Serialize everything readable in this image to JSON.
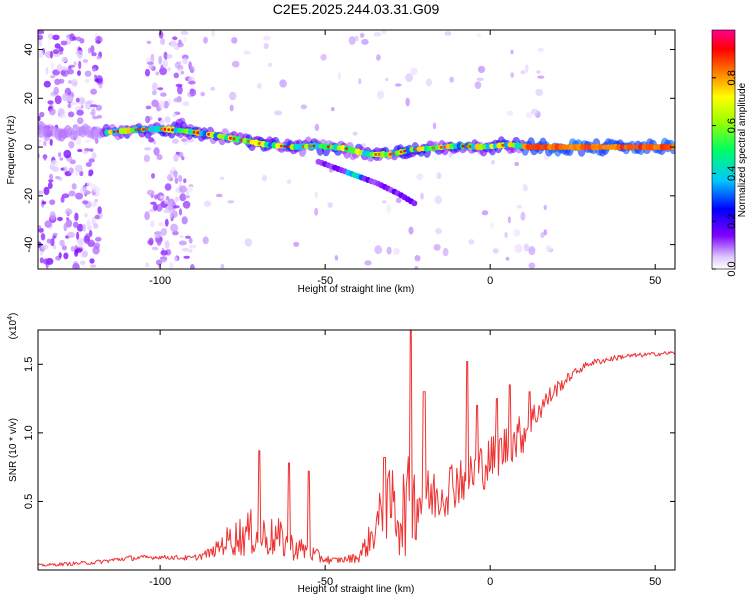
{
  "title": "C2E5.2025.244.03.31.G09",
  "chart_data": [
    {
      "type": "heatmap",
      "name": "spectrogram",
      "xlabel": "Height of straight line (km)",
      "ylabel": "Frequency (Hz)",
      "xlim": [
        -137,
        56
      ],
      "ylim": [
        -50,
        48
      ],
      "xticks": [
        -100,
        -50,
        0,
        50
      ],
      "xtick_labels": [
        "-100",
        "-50",
        "0",
        "50"
      ],
      "yticks": [
        40,
        20,
        0,
        -20,
        -40
      ],
      "ytick_labels": [
        "40",
        "20",
        "0",
        "-20",
        "-40"
      ],
      "ridge": {
        "description": "strongest spectral component",
        "x": [
          -116,
          -108,
          -100,
          -92,
          -84,
          -76,
          -68,
          -60,
          -52,
          -44,
          -37,
          -30,
          -24,
          -18,
          -10,
          -2,
          6,
          12,
          20,
          30,
          40,
          50,
          56
        ],
        "y": [
          6,
          7,
          7.5,
          6.5,
          5,
          3,
          1,
          0,
          0.5,
          -0.5,
          -3,
          -3,
          -1,
          -0.5,
          0.5,
          0,
          1,
          0,
          0,
          0,
          0,
          0,
          0
        ]
      },
      "branch": {
        "description": "secondary descending component",
        "x": [
          -52,
          -46,
          -40,
          -34,
          -28,
          -23
        ],
        "y": [
          -6,
          -9,
          -12,
          -15,
          -19,
          -23
        ]
      },
      "colorbar": {
        "label": "Normalized spectral amplitude",
        "min": 0,
        "max": 1,
        "ticks": [
          0.0,
          0.2,
          0.4,
          0.6,
          0.8
        ],
        "tick_labels": [
          "0.0",
          "0.2",
          "0.4",
          "0.6",
          "0.8"
        ],
        "colors": [
          "#ffffff",
          "#cc99ff",
          "#6600cc",
          "#0000ff",
          "#00ccff",
          "#00ff66",
          "#ffff00",
          "#ff6600",
          "#ff0000",
          "#ff0080"
        ]
      }
    },
    {
      "type": "line",
      "name": "snr",
      "xlabel": "Height of straight line (km)",
      "ylabel": "SNR (10 * v/v)",
      "scale_note": "(x10",
      "scale_exponent": "4",
      "xlim": [
        -137,
        56
      ],
      "ylim": [
        0,
        1.75
      ],
      "xticks": [
        -100,
        -50,
        0,
        50
      ],
      "xtick_labels": [
        "-100",
        "-50",
        "0",
        "50"
      ],
      "yticks": [
        0.5,
        1.0,
        1.5
      ],
      "ytick_labels": [
        "0.5",
        "1.0",
        "1.5"
      ],
      "color": "#ee3333",
      "envelope": {
        "x": [
          -137,
          -120,
          -110,
          -100,
          -90,
          -84,
          -80,
          -76,
          -72,
          -68,
          -64,
          -60,
          -56,
          -52,
          -48,
          -44,
          -40,
          -36,
          -33,
          -30,
          -27,
          -24,
          -20,
          -15,
          -10,
          -5,
          0,
          5,
          10,
          15,
          20,
          25,
          30,
          40,
          50,
          56
        ],
        "base": [
          0.03,
          0.05,
          0.08,
          0.09,
          0.08,
          0.12,
          0.18,
          0.2,
          0.22,
          0.2,
          0.18,
          0.14,
          0.12,
          0.08,
          0.06,
          0.07,
          0.08,
          0.2,
          0.35,
          0.4,
          0.3,
          0.4,
          0.45,
          0.5,
          0.6,
          0.65,
          0.75,
          0.85,
          0.95,
          1.15,
          1.3,
          1.42,
          1.5,
          1.55,
          1.57,
          1.58
        ],
        "spread": [
          0.02,
          0.03,
          0.04,
          0.03,
          0.04,
          0.08,
          0.2,
          0.3,
          0.35,
          0.3,
          0.3,
          0.2,
          0.15,
          0.1,
          0.05,
          0.05,
          0.08,
          0.25,
          0.4,
          0.55,
          0.7,
          0.7,
          0.45,
          0.4,
          0.4,
          0.4,
          0.35,
          0.35,
          0.3,
          0.2,
          0.12,
          0.06,
          0.05,
          0.04,
          0.03,
          0.03
        ]
      },
      "spikes": {
        "x": [
          -70,
          -61,
          -55,
          -32,
          -24,
          -20,
          -7,
          -4,
          2,
          6,
          12
        ],
        "y": [
          0.87,
          0.78,
          0.72,
          0.82,
          1.75,
          1.3,
          1.52,
          1.2,
          1.25,
          1.35,
          1.3
        ]
      }
    }
  ]
}
